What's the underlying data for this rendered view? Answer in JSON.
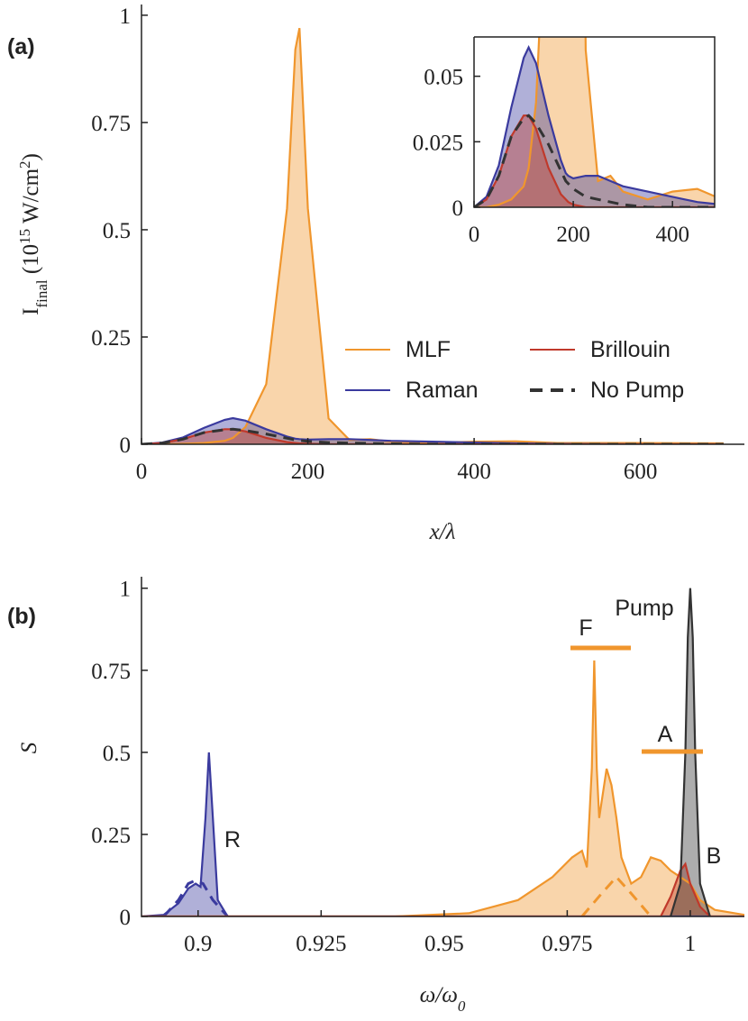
{
  "chart_data": [
    {
      "type": "line",
      "panel_label": "(a)",
      "x_label": "x/λ",
      "y_label": [
        {
          "text": "I"
        },
        {
          "text": "final",
          "sub": true
        },
        {
          "text": " (10"
        },
        {
          "text": "15",
          "sup": true
        },
        {
          "text": " W/cm"
        },
        {
          "text": "2",
          "sup": true
        },
        {
          "text": ")"
        }
      ],
      "xlim": [
        0,
        725
      ],
      "ylim": [
        0,
        1.025
      ],
      "xticks": [
        0,
        200,
        400,
        600
      ],
      "yticks": [
        0,
        0.25,
        0.5,
        0.75,
        1
      ],
      "x": [
        0,
        25,
        50,
        75,
        100,
        110,
        125,
        150,
        175,
        185,
        190,
        200,
        225,
        250,
        275,
        300,
        350,
        400,
        450,
        500,
        600,
        700
      ],
      "series": [
        {
          "name": "MLF",
          "color": "#f0962d",
          "fill": true,
          "values": [
            0,
            0,
            0.001,
            0.003,
            0.008,
            0.015,
            0.04,
            0.14,
            0.55,
            0.92,
            0.97,
            0.55,
            0.06,
            0.01,
            0.012,
            0.006,
            0.003,
            0.006,
            0.007,
            0.003,
            0.003,
            0.002
          ]
        },
        {
          "name": "Raman",
          "color": "#3a3a9e",
          "fill": true,
          "values": [
            0,
            0.004,
            0.016,
            0.038,
            0.057,
            0.061,
            0.055,
            0.035,
            0.018,
            0.013,
            0.012,
            0.011,
            0.012,
            0.012,
            0.01,
            0.008,
            0.006,
            0.004,
            0.002,
            0.001,
            0,
            0
          ]
        },
        {
          "name": "Brillouin",
          "color": "#c0392b",
          "fill": true,
          "values": [
            0,
            0.003,
            0.012,
            0.027,
            0.035,
            0.035,
            0.03,
            0.015,
            0.005,
            0.003,
            0.002,
            0.001,
            0,
            0,
            0,
            0,
            0,
            0,
            0,
            0,
            0,
            0
          ]
        },
        {
          "name": "No Pump",
          "color": "#333333",
          "dash": true,
          "values": [
            0,
            0.003,
            0.012,
            0.027,
            0.034,
            0.035,
            0.032,
            0.024,
            0.014,
            0.01,
            0.009,
            0.007,
            0.004,
            0.003,
            0.002,
            0.001,
            0,
            0,
            0,
            0,
            0,
            0
          ]
        }
      ],
      "inset": {
        "xlim": [
          0,
          485
        ],
        "ylim": [
          0,
          0.065
        ],
        "xticks": [
          0,
          200,
          400
        ],
        "yticks": [
          0,
          0.025,
          0.05
        ]
      }
    },
    {
      "type": "line",
      "panel_label": "(b)",
      "x_label": [
        {
          "text": "ω/ω"
        },
        {
          "text": "0",
          "sub": true
        }
      ],
      "y_label": [
        {
          "text": "S"
        }
      ],
      "xlim": [
        0.8885,
        1.011
      ],
      "ylim": [
        0,
        1.035
      ],
      "xticks": [
        0.9,
        0.925,
        0.95,
        0.975,
        1
      ],
      "yticks": [
        0,
        0.25,
        0.5,
        0.75,
        1
      ],
      "series": [
        {
          "color": "#3a3a9e",
          "fill": true,
          "x": [
            0.8885,
            0.893,
            0.896,
            0.898,
            0.8995,
            0.9005,
            0.9015,
            0.9022,
            0.903,
            0.904,
            0.906,
            1.011
          ],
          "values": [
            0,
            0.005,
            0.04,
            0.085,
            0.1,
            0.09,
            0.3,
            0.5,
            0.3,
            0.05,
            0,
            0
          ]
        },
        {
          "color": "#3a3a9e",
          "dash": true,
          "x": [
            0.893,
            0.896,
            0.898,
            0.8995,
            0.901,
            0.903,
            0.906
          ],
          "values": [
            0,
            0.05,
            0.1,
            0.11,
            0.1,
            0.05,
            0
          ]
        },
        {
          "color": "#f0962d",
          "fill": true,
          "x": [
            0.8885,
            0.94,
            0.955,
            0.965,
            0.972,
            0.976,
            0.978,
            0.979,
            0.98,
            0.9805,
            0.981,
            0.9815,
            0.982,
            0.983,
            0.984,
            0.985,
            0.986,
            0.988,
            0.99,
            0.992,
            0.994,
            0.996,
            0.998,
            1,
            1.002,
            1.005,
            1.011
          ],
          "values": [
            0,
            0,
            0.01,
            0.05,
            0.12,
            0.18,
            0.2,
            0.15,
            0.45,
            0.78,
            0.45,
            0.3,
            0.35,
            0.45,
            0.4,
            0.3,
            0.18,
            0.1,
            0.12,
            0.18,
            0.17,
            0.14,
            0.12,
            0.1,
            0.05,
            0.02,
            0.005
          ]
        },
        {
          "color": "#f0962d",
          "dash": true,
          "x": [
            0.978,
            0.982,
            0.985,
            0.988,
            0.992
          ],
          "values": [
            0,
            0.07,
            0.12,
            0.07,
            0
          ]
        },
        {
          "color": "#c0392b",
          "fill": true,
          "x": [
            0.8885,
            0.994,
            0.996,
            0.998,
            0.999,
            1,
            1.002,
            1.004,
            1.011
          ],
          "values": [
            0,
            0,
            0.06,
            0.14,
            0.16,
            0.1,
            0.03,
            0,
            0
          ]
        },
        {
          "color": "#333333",
          "fill": true,
          "x": [
            0.996,
            0.998,
            0.999,
            0.9995,
            1,
            1.0005,
            1.001,
            1.002,
            1.004
          ],
          "values": [
            0,
            0.1,
            0.5,
            0.85,
            1,
            0.85,
            0.5,
            0.1,
            0
          ]
        }
      ],
      "annotations": [
        {
          "text": "R",
          "color": "#3a3a9e"
        },
        {
          "text": "F",
          "color": "#f0962d"
        },
        {
          "text": "Pump",
          "color": "#222222"
        },
        {
          "text": "A",
          "color": "#f0962d"
        },
        {
          "text": "B",
          "color": "#c0392b"
        }
      ]
    }
  ]
}
